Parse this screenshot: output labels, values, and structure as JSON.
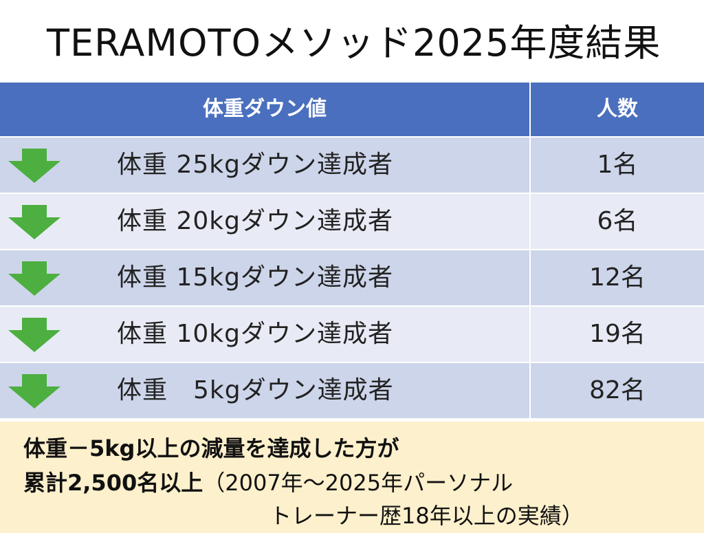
{
  "title": "TERAMOTOメソッド2025年度結果",
  "table": {
    "headers": [
      "体重ダウン値",
      "人数"
    ],
    "rows": [
      {
        "label": "体重 25kgダウン達成者",
        "count": "1名"
      },
      {
        "label": "体重 20kgダウン達成者",
        "count": "6名"
      },
      {
        "label": "体重 15kgダウン達成者",
        "count": "12名"
      },
      {
        "label": "体重 10kgダウン達成者",
        "count": "19名"
      },
      {
        "label": "体重　5kgダウン達成者",
        "count": "82名"
      }
    ],
    "arrow_icon": "down-arrow-icon",
    "arrow_color": "#4caf3f",
    "header_color": "#4a6fbe"
  },
  "note": {
    "line1": "体重－5kg以上の減量を達成した方が",
    "line2_bold": "累計2,500名以上",
    "line2_rest": "（2007年～2025年パーソナル",
    "line3": "トレーナー歴18年以上の実績）"
  }
}
